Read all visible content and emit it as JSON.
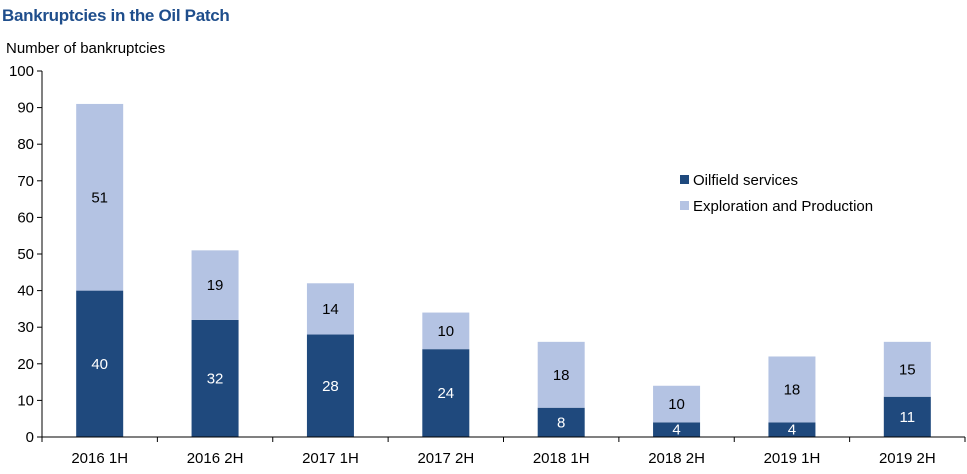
{
  "colors": {
    "title": "#1f4e8c",
    "oilfield_services": "#1f497d",
    "exploration_production": "#b4c3e3",
    "axis": "#000000"
  },
  "chart_data": {
    "type": "bar",
    "stacked": true,
    "title": "Bankruptcies in the Oil Patch",
    "ylabel": "Number of bankruptcies",
    "xlabel": "",
    "ylim": [
      0,
      100
    ],
    "yticks": [
      0,
      10,
      20,
      30,
      40,
      50,
      60,
      70,
      80,
      90,
      100
    ],
    "grid": false,
    "legend_position": "right",
    "categories": [
      "2016 1H",
      "2016 2H",
      "2017 1H",
      "2017 2H",
      "2018 1H",
      "2018 2H",
      "2019 1H",
      "2019 2H"
    ],
    "series": [
      {
        "name": "Oilfield services",
        "color": "#1f497d",
        "label_color": "#ffffff",
        "values": [
          40,
          32,
          28,
          24,
          8,
          4,
          4,
          11
        ]
      },
      {
        "name": "Exploration and Production",
        "color": "#b4c3e3",
        "label_color": "#000000",
        "values": [
          51,
          19,
          14,
          10,
          18,
          10,
          18,
          15
        ]
      }
    ]
  }
}
